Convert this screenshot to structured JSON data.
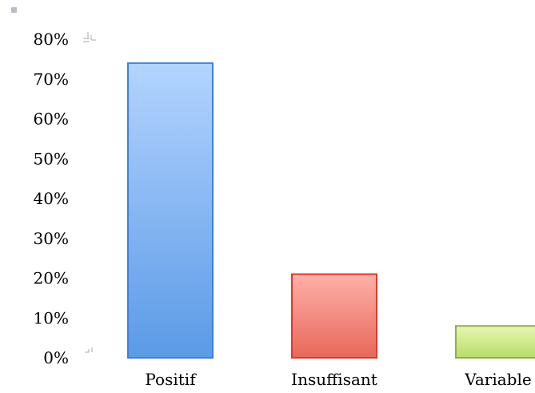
{
  "chart_data": {
    "type": "bar",
    "categories": [
      "Positif",
      "Insuffisant",
      "Variable"
    ],
    "values": [
      74,
      21,
      8
    ],
    "ylim": [
      0,
      80
    ],
    "yticks": [
      "0%",
      "10%",
      "20%",
      "30%",
      "40%",
      "50%",
      "60%",
      "70%",
      "80%"
    ],
    "bar_colors": [
      {
        "top": "#b3d4ff",
        "bottom": "#5b9ae6",
        "stroke": "#3d7fe0"
      },
      {
        "top": "#ffb0a8",
        "bottom": "#e8685a",
        "stroke": "#e03a2a"
      },
      {
        "top": "#e8f7b0",
        "bottom": "#b8dc6a",
        "stroke": "#8fb04a"
      }
    ],
    "grid": false,
    "legend": "none"
  }
}
